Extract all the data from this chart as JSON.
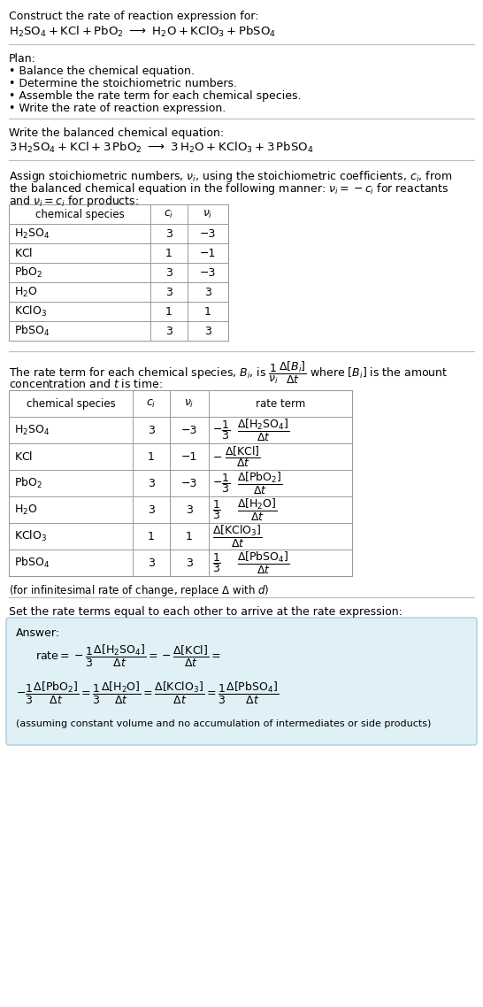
{
  "bg_color": "#ffffff",
  "text_color": "#000000",
  "font_size": 9.0,
  "table1_rows": [
    [
      "H₂SO₄",
      "3",
      "−3"
    ],
    [
      "KCl",
      "1",
      "−1"
    ],
    [
      "PbO₂",
      "3",
      "−3"
    ],
    [
      "H₂O",
      "3",
      "3"
    ],
    [
      "KClO₃",
      "1",
      "1"
    ],
    [
      "PbSO₄",
      "3",
      "3"
    ]
  ],
  "table2_rows": [
    [
      "H₂SO₄",
      "3",
      "−3"
    ],
    [
      "KCl",
      "1",
      "−1"
    ],
    [
      "PbO₂",
      "3",
      "−3"
    ],
    [
      "H₂O",
      "3",
      "3"
    ],
    [
      "KClO₃",
      "1",
      "1"
    ],
    [
      "PbSO₄",
      "3",
      "3"
    ]
  ],
  "answer_box_color": "#dff0f7",
  "answer_box_border": "#aaccdd"
}
